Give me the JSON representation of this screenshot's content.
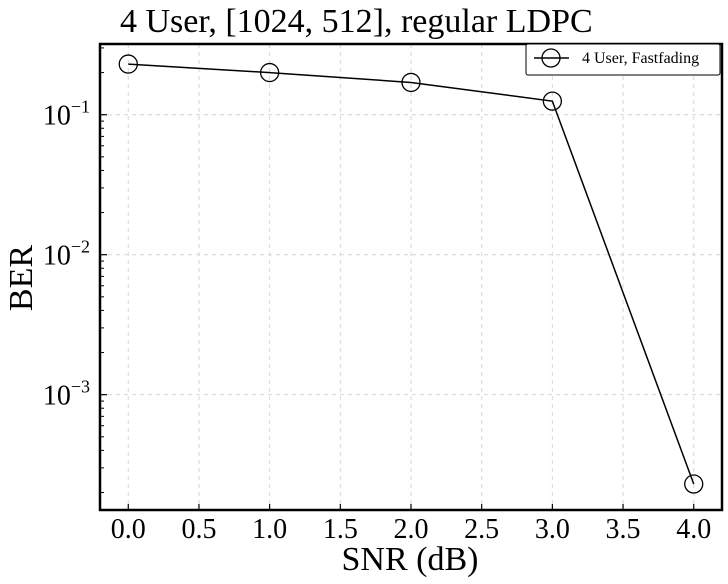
{
  "chart_data": {
    "type": "line",
    "title": "4 User, [1024, 512], regular LDPC",
    "xlabel": "SNR (dB)",
    "ylabel": "BER",
    "yscale": "log",
    "xlim": [
      -0.2,
      4.2
    ],
    "ylim": [
      0.00015,
      0.32
    ],
    "xticks": [
      "0.0",
      "0.5",
      "1.0",
      "1.5",
      "2.0",
      "2.5",
      "3.0",
      "3.5",
      "4.0"
    ],
    "yticks": [
      {
        "base": "10",
        "exp": "−1",
        "value": 0.1
      },
      {
        "base": "10",
        "exp": "−2",
        "value": 0.01
      },
      {
        "base": "10",
        "exp": "−3",
        "value": 0.001
      }
    ],
    "grid": true,
    "legend_position": "top-right",
    "series": [
      {
        "name": "4 User, Fastfading",
        "color": "#000000",
        "marker": "open-circle",
        "x": [
          0,
          1,
          2,
          3,
          4
        ],
        "y": [
          0.23,
          0.2,
          0.17,
          0.125,
          0.00023
        ]
      }
    ]
  }
}
